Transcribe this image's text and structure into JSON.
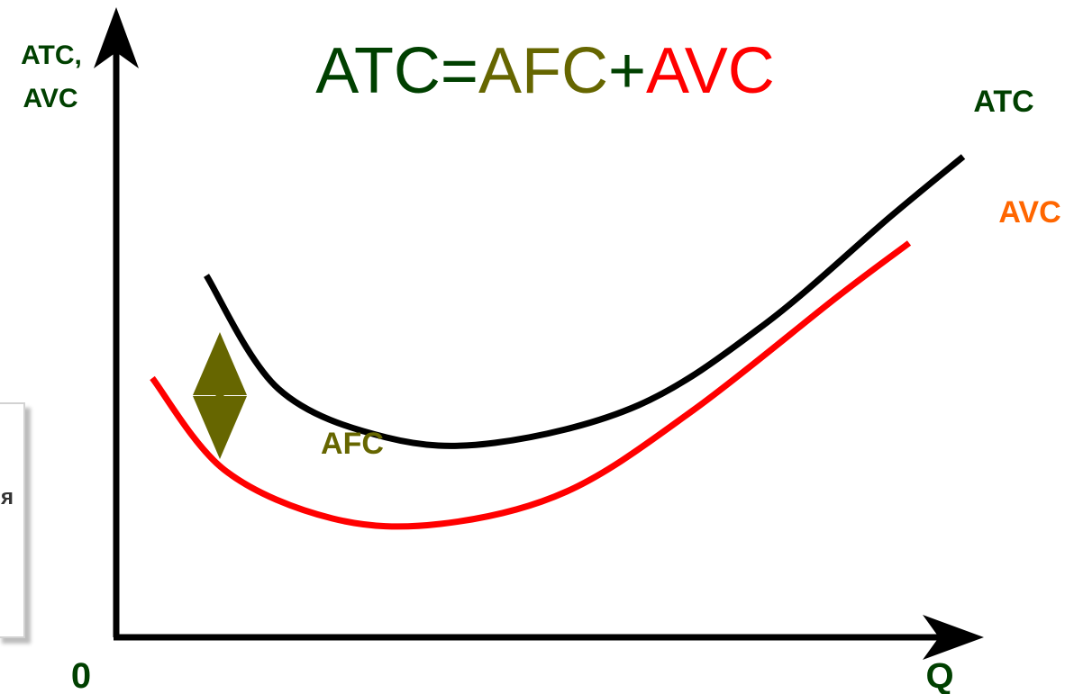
{
  "chart_data": {
    "type": "line",
    "title_parts": [
      {
        "text": "ATC",
        "color": "#004000"
      },
      {
        "text": "=",
        "color": "#004000"
      },
      {
        "text": "AFC",
        "color": "#666600"
      },
      {
        "text": "+",
        "color": "#004000"
      },
      {
        "text": "AVC",
        "color": "#ff0000"
      }
    ],
    "ylabel": [
      "ATC,",
      "AVC"
    ],
    "xlabel": "Q",
    "origin_label": "0",
    "xlim": [
      0,
      100
    ],
    "ylim": [
      0,
      100
    ],
    "series": [
      {
        "name": "ATC",
        "color": "#000000",
        "label_color": "#004000",
        "points": [
          [
            10,
            67
          ],
          [
            18,
            46
          ],
          [
            30,
            37
          ],
          [
            42,
            36
          ],
          [
            58,
            43
          ],
          [
            72,
            58
          ],
          [
            86,
            78
          ],
          [
            94,
            89
          ]
        ]
      },
      {
        "name": "AVC",
        "color": "#ff0000",
        "label_color": "#ff6600",
        "points": [
          [
            4,
            48
          ],
          [
            12,
            31
          ],
          [
            24,
            22
          ],
          [
            36,
            21
          ],
          [
            50,
            27
          ],
          [
            64,
            42
          ],
          [
            80,
            63
          ],
          [
            88,
            73
          ]
        ]
      }
    ],
    "annotations": [
      {
        "text": "AFC",
        "color": "#666600",
        "arrow_x": 11.5,
        "arrow_from": 56.5,
        "arrow_to": 33
      }
    ]
  },
  "side_box": {
    "text": "я"
  }
}
